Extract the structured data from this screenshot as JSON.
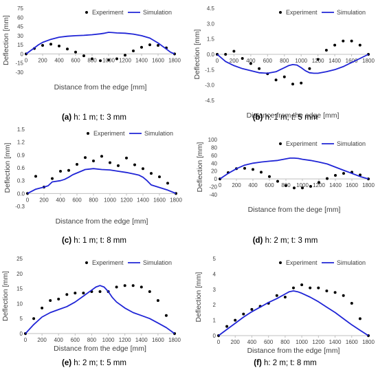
{
  "chart_data": [
    {
      "type": "line",
      "caption": {
        "label": "(a)",
        "rest": " h: 1 m; t: 3 mm"
      },
      "xlabel": "Distance from the edge [mm]",
      "ylabel": "Deflection [mm]",
      "xlim": [
        0,
        1800
      ],
      "ylim": [
        -30,
        75
      ],
      "xticks": [
        0,
        200,
        400,
        600,
        800,
        1000,
        1200,
        1400,
        1600,
        1800
      ],
      "yticks": [
        -30,
        -15,
        0,
        15,
        30,
        45,
        60,
        75
      ],
      "ytick_labels": [
        "-30",
        "-15",
        "0",
        "15",
        "30",
        "45",
        "60",
        "75"
      ],
      "legend": {
        "position": "top-right",
        "entries": [
          "Experiment",
          "Simulation"
        ]
      },
      "series": [
        {
          "name": "Experiment",
          "kind": "scatter",
          "x": [
            0,
            100,
            200,
            300,
            400,
            500,
            600,
            700,
            800,
            900,
            1000,
            1100,
            1200,
            1300,
            1400,
            1500,
            1600,
            1700,
            1800
          ],
          "y": [
            0,
            9,
            14,
            16,
            13,
            8,
            3,
            -3,
            -8,
            -11,
            -10,
            -8,
            -2,
            5,
            11,
            15,
            14,
            10,
            0
          ]
        },
        {
          "name": "Simulation",
          "kind": "line",
          "x": [
            0,
            50,
            100,
            150,
            200,
            300,
            400,
            500,
            600,
            700,
            800,
            900,
            950,
            1000,
            1050,
            1100,
            1200,
            1300,
            1400,
            1500,
            1600,
            1700,
            1750,
            1800
          ],
          "y": [
            0,
            5,
            10,
            15,
            19,
            24,
            27.5,
            29,
            30,
            30.5,
            31.5,
            33,
            34,
            35.5,
            35,
            34.5,
            34,
            32.5,
            30,
            26,
            18,
            8,
            3,
            0
          ]
        }
      ]
    },
    {
      "type": "line",
      "caption": {
        "label": "(b)",
        "rest": " h: 1 m; t: 5 mm"
      },
      "xlabel": "Distance from the edge [mm]",
      "ylabel": "Deflection [mm]",
      "xlim": [
        0,
        1800
      ],
      "ylim": [
        -4.5,
        4.5
      ],
      "xticks": [
        0,
        200,
        400,
        600,
        800,
        1000,
        1200,
        1400,
        1600,
        1800
      ],
      "yticks": [
        -4.5,
        -3,
        -1.5,
        0,
        1.5,
        3,
        4.5
      ],
      "ytick_labels": [
        "-4.5",
        "-3.0",
        "-1.5",
        "0.0",
        "1.5",
        "3.0",
        "4.5"
      ],
      "legend": {
        "position": "top-right",
        "entries": [
          "Experiment",
          "Simulation"
        ]
      },
      "series": [
        {
          "name": "Experiment",
          "kind": "scatter",
          "x": [
            0,
            100,
            200,
            300,
            400,
            500,
            600,
            700,
            800,
            900,
            1000,
            1100,
            1200,
            1300,
            1400,
            1500,
            1600,
            1700,
            1800
          ],
          "y": [
            0,
            0,
            0.3,
            -0.4,
            -0.9,
            -1.4,
            -1.9,
            -2.5,
            -2.2,
            -2.9,
            -2.8,
            -1.4,
            -0.5,
            0.4,
            0.9,
            1.3,
            1.3,
            0.9,
            0
          ]
        },
        {
          "name": "Simulation",
          "kind": "line",
          "x": [
            0,
            100,
            200,
            300,
            400,
            500,
            600,
            700,
            750,
            800,
            850,
            900,
            950,
            1000,
            1050,
            1100,
            1150,
            1200,
            1300,
            1400,
            1500,
            1600,
            1700,
            1800
          ],
          "y": [
            0,
            -0.7,
            -1.1,
            -1.4,
            -1.6,
            -1.8,
            -1.85,
            -1.7,
            -1.5,
            -1.3,
            -1.1,
            -1.0,
            -1.05,
            -1.3,
            -1.6,
            -1.8,
            -1.85,
            -1.85,
            -1.7,
            -1.5,
            -1.2,
            -0.8,
            -0.4,
            0
          ]
        }
      ]
    },
    {
      "type": "line",
      "caption": {
        "label": "(c)",
        "rest": " h: 1 m; t: 8 mm"
      },
      "xlabel": "Distance from the edge [mm]",
      "ylabel": "Deflection [mm]",
      "xlim": [
        0,
        1800
      ],
      "ylim": [
        -0.3,
        1.5
      ],
      "xticks": [
        0,
        200,
        400,
        600,
        800,
        1000,
        1200,
        1400,
        1600,
        1800
      ],
      "yticks": [
        -0.3,
        0,
        0.3,
        0.6,
        0.9,
        1.2,
        1.5
      ],
      "ytick_labels": [
        "-0.3",
        "0.0",
        "0.3",
        "0.6",
        "0.9",
        "1.2",
        "1.5"
      ],
      "legend": {
        "position": "top-right",
        "entries": [
          "Experiment",
          "Simulation"
        ]
      },
      "series": [
        {
          "name": "Experiment",
          "kind": "scatter",
          "x": [
            0,
            100,
            200,
            300,
            400,
            500,
            600,
            700,
            800,
            900,
            1000,
            1100,
            1200,
            1300,
            1400,
            1500,
            1600,
            1700,
            1800
          ],
          "y": [
            0,
            0.4,
            0.15,
            0.35,
            0.52,
            0.54,
            0.68,
            0.84,
            0.76,
            0.87,
            0.72,
            0.65,
            0.83,
            0.67,
            0.58,
            0.47,
            0.39,
            0.24,
            0
          ]
        },
        {
          "name": "Simulation",
          "kind": "line",
          "x": [
            0,
            100,
            200,
            250,
            300,
            400,
            450,
            500,
            550,
            600,
            700,
            800,
            900,
            1000,
            1100,
            1200,
            1300,
            1350,
            1400,
            1450,
            1500,
            1600,
            1700,
            1800
          ],
          "y": [
            0,
            0.1,
            0.15,
            0.18,
            0.27,
            0.3,
            0.33,
            0.38,
            0.44,
            0.48,
            0.56,
            0.58,
            0.56,
            0.55,
            0.52,
            0.49,
            0.45,
            0.43,
            0.38,
            0.3,
            0.2,
            0.14,
            0.08,
            0
          ]
        }
      ]
    },
    {
      "type": "line",
      "caption": {
        "label": "(d)",
        "rest": " h: 2 m; t: 3 mm"
      },
      "xlabel": "Distance from the dege [mm]",
      "ylabel": "Deflection [mm]",
      "xlim": [
        0,
        1800
      ],
      "ylim": [
        -40,
        100
      ],
      "xticks": [
        0,
        200,
        400,
        600,
        800,
        1000,
        1200,
        1400,
        1600,
        1800
      ],
      "yticks": [
        -40,
        -20,
        0,
        20,
        40,
        60,
        80,
        100
      ],
      "ytick_labels": [
        "-40",
        "-20",
        "0",
        "20",
        "40",
        "60",
        "80",
        "100"
      ],
      "legend": {
        "position": "top-right",
        "entries": [
          "Experiment",
          "Simulation"
        ]
      },
      "series": [
        {
          "name": "Experiment",
          "kind": "scatter",
          "x": [
            0,
            100,
            200,
            300,
            400,
            500,
            600,
            700,
            800,
            900,
            1000,
            1100,
            1200,
            1300,
            1400,
            1500,
            1600,
            1700,
            1800
          ],
          "y": [
            0,
            16,
            26,
            27,
            24,
            17,
            6,
            -6,
            -17,
            -23,
            -23,
            -19,
            -9,
            1,
            9,
            14,
            17,
            10,
            0
          ]
        },
        {
          "name": "Simulation",
          "kind": "line",
          "x": [
            0,
            100,
            200,
            300,
            400,
            500,
            600,
            700,
            800,
            850,
            900,
            950,
            1000,
            1100,
            1200,
            1300,
            1400,
            1500,
            1600,
            1700,
            1800
          ],
          "y": [
            0,
            14,
            26,
            35,
            40,
            43,
            45,
            47,
            51,
            53,
            53,
            52,
            50,
            47,
            43,
            38,
            30,
            22,
            14,
            6,
            0
          ]
        }
      ]
    },
    {
      "type": "line",
      "caption": {
        "label": "(e)",
        "rest": " h: 2 m; t: 5 mm"
      },
      "xlabel": "Distance from the edge [mm]",
      "ylabel": "Deflection [mm]",
      "xlim": [
        0,
        1800
      ],
      "ylim": [
        0,
        25
      ],
      "xticks": [
        0,
        200,
        400,
        600,
        800,
        1000,
        1200,
        1400,
        1600,
        1800
      ],
      "yticks": [
        0,
        5,
        10,
        15,
        20,
        25
      ],
      "ytick_labels": [
        "0",
        "5",
        "10",
        "15",
        "20",
        "25"
      ],
      "legend": {
        "position": "top-right",
        "entries": [
          "Experiment",
          "Simulation"
        ]
      },
      "series": [
        {
          "name": "Experiment",
          "kind": "scatter",
          "x": [
            0,
            100,
            200,
            300,
            400,
            500,
            600,
            700,
            800,
            900,
            1000,
            1100,
            1200,
            1300,
            1400,
            1500,
            1600,
            1700,
            1800
          ],
          "y": [
            0,
            5,
            8.5,
            11,
            11.5,
            13,
            13.5,
            13.5,
            14,
            14,
            14,
            15.5,
            16,
            16,
            15.5,
            14,
            11,
            6,
            0
          ]
        },
        {
          "name": "Simulation",
          "kind": "line",
          "x": [
            0,
            100,
            200,
            300,
            400,
            500,
            600,
            700,
            750,
            800,
            850,
            900,
            950,
            1000,
            1050,
            1100,
            1200,
            1300,
            1400,
            1500,
            1600,
            1700,
            1800
          ],
          "y": [
            0,
            3,
            5.5,
            7,
            8,
            9,
            10.5,
            12.5,
            13.5,
            14.5,
            15.5,
            16,
            15.5,
            14,
            12,
            10.5,
            8.5,
            7,
            6,
            5,
            3.5,
            2,
            0
          ]
        }
      ]
    },
    {
      "type": "line",
      "caption": {
        "label": "(f)",
        "rest": " h: 2 m; t: 8 mm"
      },
      "xlabel": "Distance from the edge [mm]",
      "ylabel": "Deflection [mm]",
      "xlim": [
        0,
        1800
      ],
      "ylim": [
        0,
        5
      ],
      "xticks": [
        0,
        200,
        400,
        600,
        800,
        1000,
        1200,
        1400,
        1600,
        1800
      ],
      "yticks": [
        0,
        1,
        2,
        3,
        4,
        5
      ],
      "ytick_labels": [
        "0",
        "1",
        "2",
        "3",
        "4",
        "5"
      ],
      "legend": {
        "position": "top-right",
        "entries": [
          "Experiment",
          "Simulation"
        ]
      },
      "series": [
        {
          "name": "Experiment",
          "kind": "scatter",
          "x": [
            0,
            100,
            200,
            300,
            400,
            500,
            600,
            700,
            800,
            900,
            1000,
            1100,
            1200,
            1300,
            1400,
            1500,
            1600,
            1700,
            1800
          ],
          "y": [
            0,
            0.6,
            1.0,
            1.4,
            1.7,
            1.9,
            2.1,
            2.6,
            2.5,
            3.1,
            3.3,
            3.1,
            3.1,
            2.9,
            2.8,
            2.6,
            2.1,
            1.1,
            0
          ]
        },
        {
          "name": "Simulation",
          "kind": "line",
          "x": [
            0,
            100,
            200,
            300,
            400,
            500,
            600,
            700,
            800,
            850,
            900,
            950,
            1000,
            1100,
            1200,
            1300,
            1400,
            1500,
            1600,
            1700,
            1800
          ],
          "y": [
            0,
            0.4,
            0.8,
            1.2,
            1.55,
            1.85,
            2.15,
            2.4,
            2.7,
            2.85,
            2.9,
            2.85,
            2.75,
            2.5,
            2.2,
            1.85,
            1.5,
            1.1,
            0.7,
            0.35,
            0
          ]
        }
      ]
    }
  ]
}
